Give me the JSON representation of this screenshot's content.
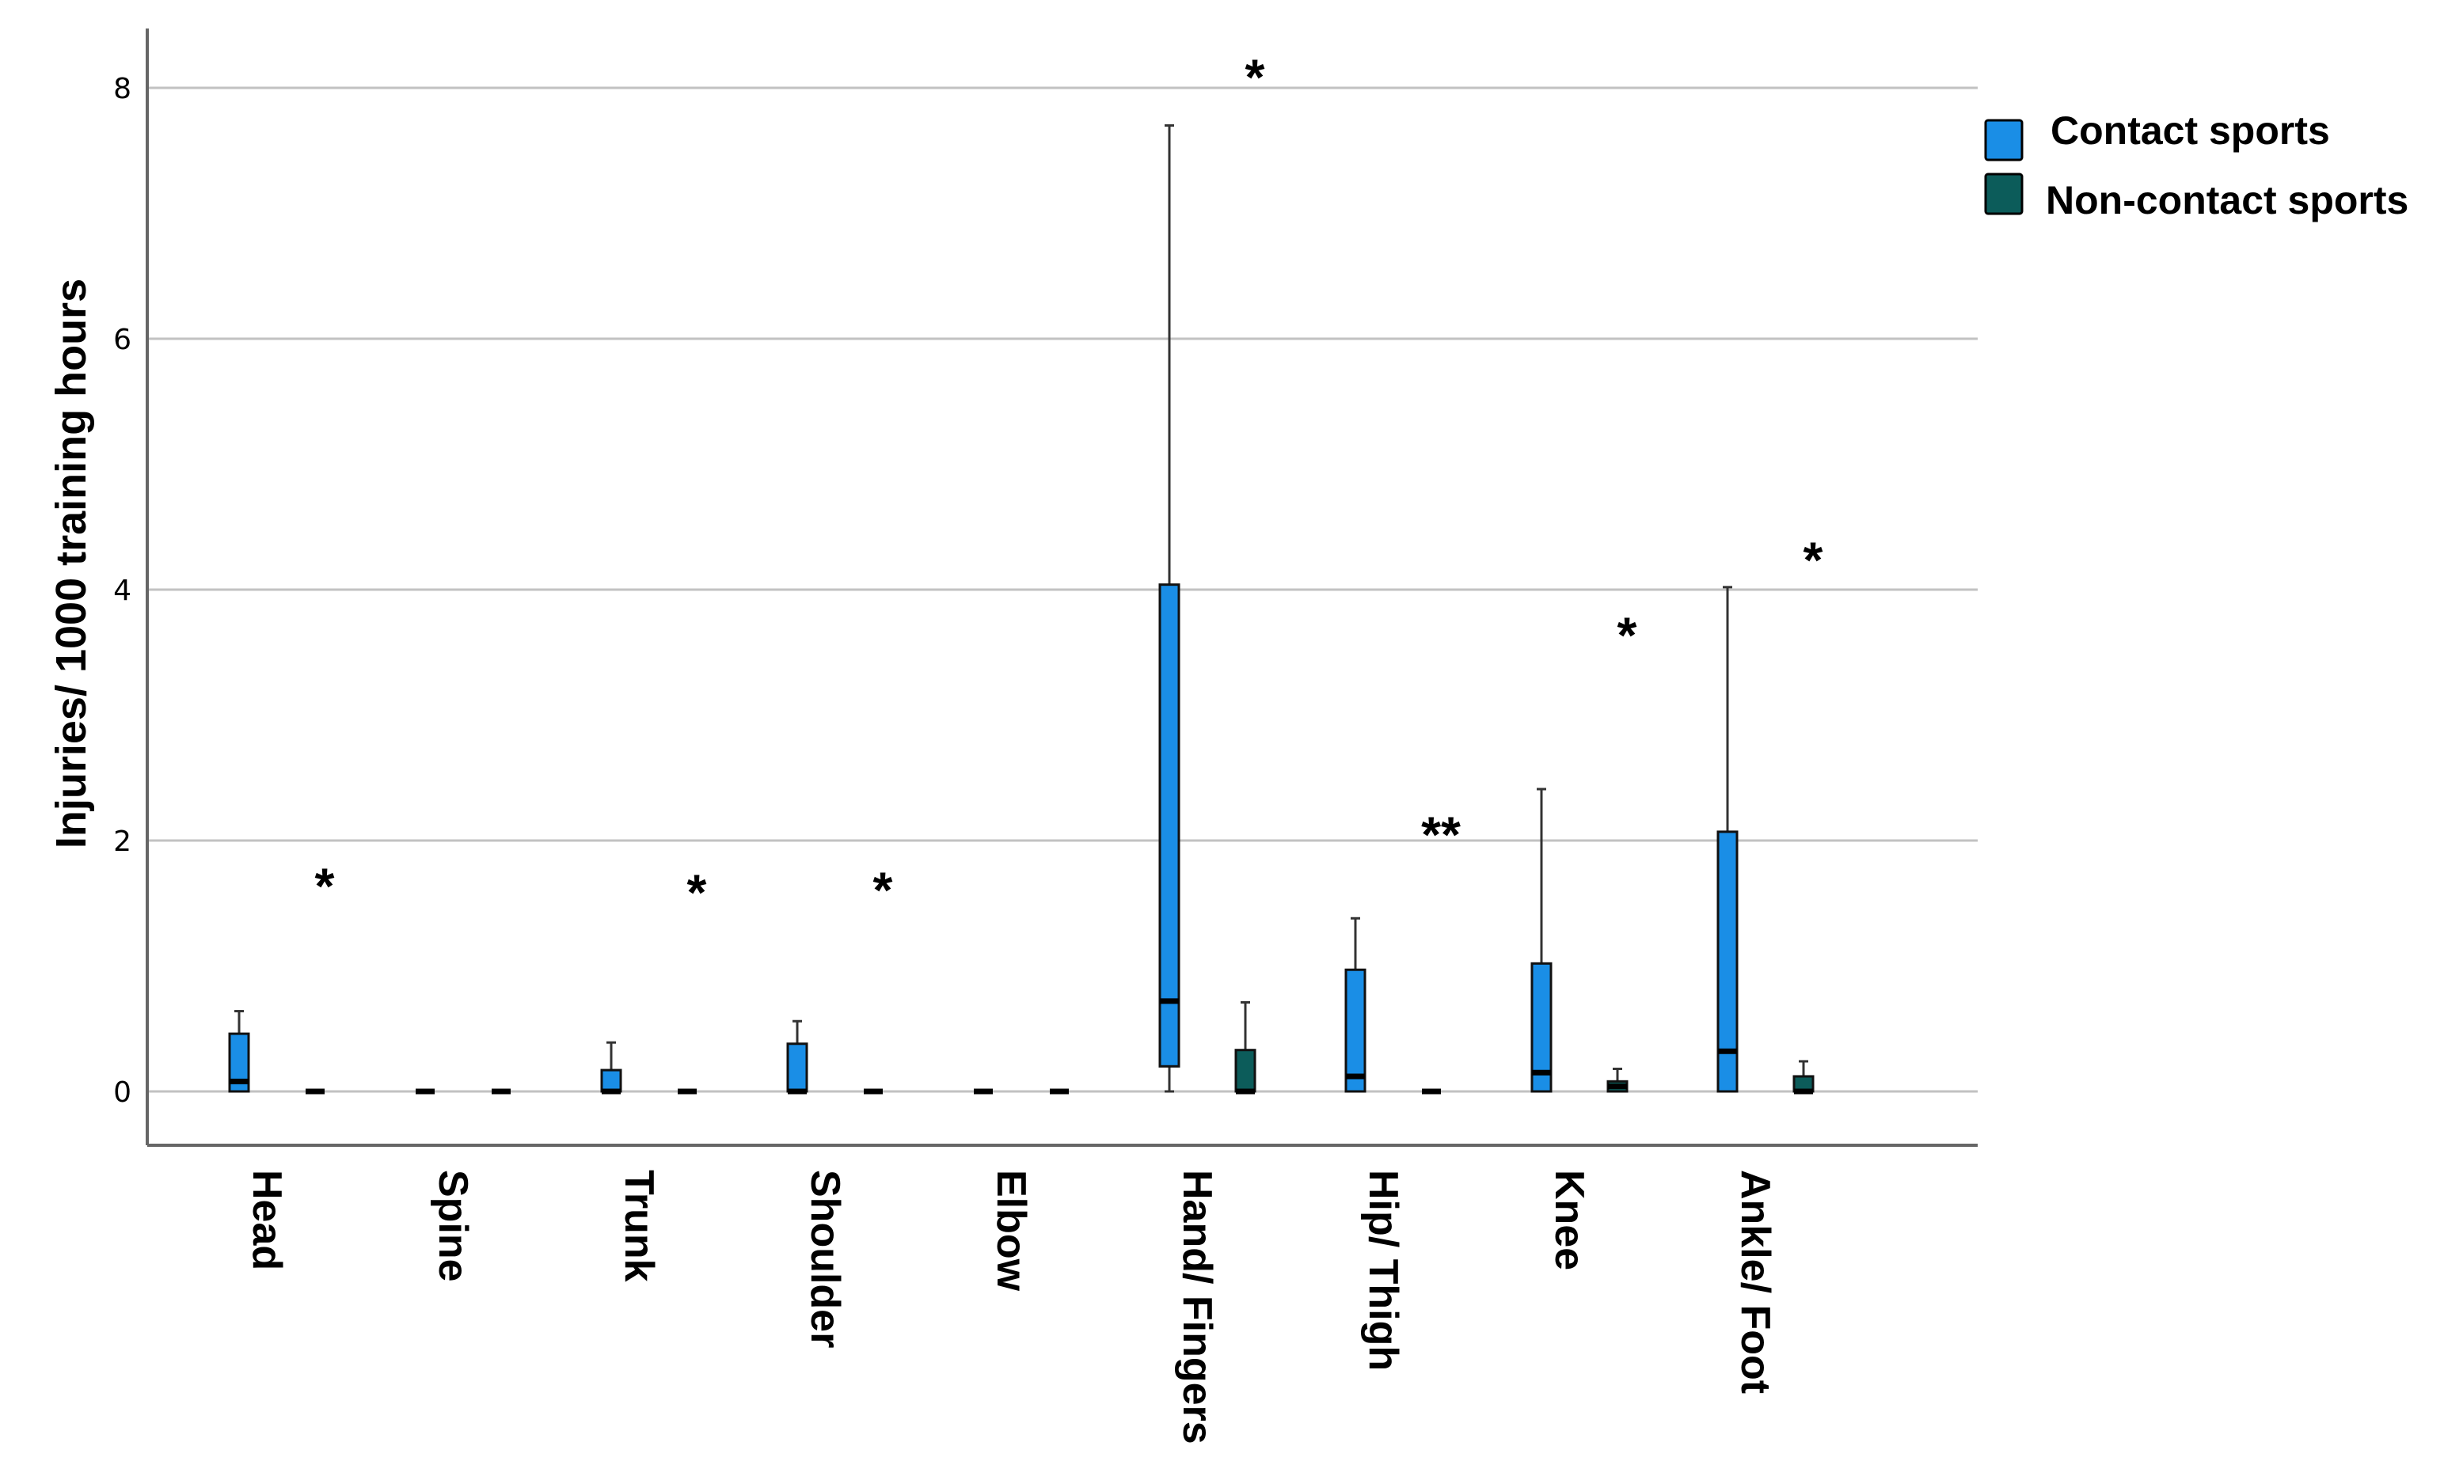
{
  "chart_data": {
    "type": "boxplot",
    "ylabel": "Injuries/ 1000 training hours",
    "xlabel": "",
    "ylim": [
      -0.45,
      8.45
    ],
    "yticks": [
      0,
      2,
      4,
      6,
      8
    ],
    "grid": true,
    "legend_position": "top-right",
    "categories": [
      "Head",
      "Spine",
      "Trunk",
      "Shoulder",
      "Elbow",
      "Hand/ Fingers",
      "Hip/ Thigh",
      "Knee",
      "Ankle/ Foot"
    ],
    "series": [
      {
        "name": "Contact sports",
        "color": "#1a8ee6",
        "boxes": [
          {
            "min": 0,
            "q1": 0,
            "median": 0.08,
            "q3": 0.46,
            "max": 0.64
          },
          {
            "min": 0,
            "q1": 0,
            "median": 0,
            "q3": 0,
            "max": 0
          },
          {
            "min": 0,
            "q1": 0,
            "median": 0,
            "q3": 0.17,
            "max": 0.39
          },
          {
            "min": 0,
            "q1": 0,
            "median": 0,
            "q3": 0.38,
            "max": 0.56
          },
          {
            "min": 0,
            "q1": 0,
            "median": 0,
            "q3": 0,
            "max": 0
          },
          {
            "min": 0,
            "q1": 0.2,
            "median": 0.72,
            "q3": 4.04,
            "max": 7.7
          },
          {
            "min": 0,
            "q1": 0,
            "median": 0.12,
            "q3": 0.97,
            "max": 1.38
          },
          {
            "min": 0,
            "q1": 0,
            "median": 0.15,
            "q3": 1.02,
            "max": 2.41
          },
          {
            "min": 0,
            "q1": 0,
            "median": 0.32,
            "q3": 2.07,
            "max": 4.02
          }
        ]
      },
      {
        "name": "Non-contact sports",
        "color": "#0c5c5a",
        "boxes": [
          {
            "min": 0,
            "q1": 0,
            "median": 0,
            "q3": 0,
            "max": 0
          },
          {
            "min": 0,
            "q1": 0,
            "median": 0,
            "q3": 0,
            "max": 0
          },
          {
            "min": 0,
            "q1": 0,
            "median": 0,
            "q3": 0,
            "max": 0
          },
          {
            "min": 0,
            "q1": 0,
            "median": 0,
            "q3": 0,
            "max": 0
          },
          {
            "min": 0,
            "q1": 0,
            "median": 0,
            "q3": 0,
            "max": 0
          },
          {
            "min": 0,
            "q1": 0,
            "median": 0,
            "q3": 0.33,
            "max": 0.71
          },
          {
            "min": 0,
            "q1": 0,
            "median": 0,
            "q3": 0,
            "max": 0
          },
          {
            "min": 0,
            "q1": 0,
            "median": 0.04,
            "q3": 0.08,
            "max": 0.18
          },
          {
            "min": 0,
            "q1": 0,
            "median": 0,
            "q3": 0.12,
            "max": 0.24
          }
        ]
      }
    ],
    "annotations": [
      {
        "category": "Head",
        "text": "*",
        "y": 1.75
      },
      {
        "category": "Trunk",
        "text": "*",
        "y": 1.7
      },
      {
        "category": "Shoulder",
        "text": "*",
        "y": 1.72
      },
      {
        "category": "Hand/ Fingers",
        "text": "*",
        "y": 8.2
      },
      {
        "category": "Hip/ Thigh",
        "text": "**",
        "y": 2.16
      },
      {
        "category": "Knee",
        "text": "*",
        "y": 3.75
      },
      {
        "category": "Ankle/ Foot",
        "text": "*",
        "y": 4.35
      }
    ]
  }
}
